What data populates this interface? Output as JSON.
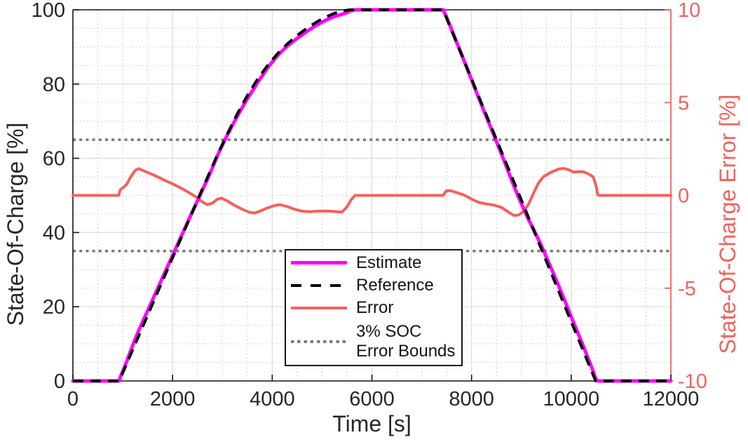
{
  "colors": {
    "axis": "#141414",
    "right_axis": "#F4615D",
    "text": "#262626",
    "grid_major": "#DBDBDB",
    "grid_minor": "#CFCFCF",
    "background": "#FFFFFF"
  },
  "chart_data": {
    "type": "line",
    "title": "",
    "xlabel": "Time [s]",
    "ylabel_left": "State-Of-Charge [%]",
    "ylabel_right": "State-Of-Charge Error [%]",
    "xlim": [
      0,
      12000
    ],
    "ylim_left": [
      0,
      100
    ],
    "ylim_right": [
      -10,
      10
    ],
    "xticks": [
      0,
      2000,
      4000,
      6000,
      8000,
      10000,
      12000
    ],
    "yticks_left": [
      0,
      20,
      40,
      60,
      80,
      100
    ],
    "yticks_right": [
      -10,
      -5,
      0,
      5,
      10
    ],
    "x_minor_step": 500,
    "x_major_step": 2000,
    "y_minor_step_left": 5,
    "y_major_step_left": 20,
    "grid": "major solid, minor dotted",
    "legend": {
      "position": "south-center",
      "items": [
        {
          "label": "Estimate"
        },
        {
          "label": "Reference"
        },
        {
          "label": "Error"
        },
        {
          "label_line1": "3% SOC",
          "label_line2": "Error Bounds"
        }
      ]
    },
    "series": [
      {
        "name": "Estimate",
        "axis": "left",
        "color": "#FF00FF",
        "style": "solid",
        "derived": "reference_plus_error"
      },
      {
        "name": "Reference",
        "axis": "left",
        "color": "#000000",
        "style": "dashed",
        "points": [
          [
            0,
            0
          ],
          [
            930,
            0
          ],
          [
            1400,
            14.6
          ],
          [
            1800,
            27
          ],
          [
            2200,
            39.4
          ],
          [
            2600,
            51.8
          ],
          [
            2900,
            60.9
          ],
          [
            3100,
            66.6
          ],
          [
            3300,
            72
          ],
          [
            3500,
            76.9
          ],
          [
            3700,
            81.2
          ],
          [
            3900,
            84.9
          ],
          [
            4100,
            88.1
          ],
          [
            4300,
            90.8
          ],
          [
            4500,
            93.1
          ],
          [
            4700,
            95.1
          ],
          [
            4900,
            96.8
          ],
          [
            5100,
            98.2
          ],
          [
            5250,
            99.1
          ],
          [
            5400,
            99.7
          ],
          [
            5560,
            100
          ],
          [
            7430,
            100
          ],
          [
            7800,
            87.9
          ],
          [
            8200,
            74.8
          ],
          [
            8600,
            61.8
          ],
          [
            9000,
            48.7
          ],
          [
            9400,
            35.6
          ],
          [
            9800,
            22.5
          ],
          [
            10200,
            9.5
          ],
          [
            10490,
            0
          ],
          [
            12000,
            0
          ]
        ]
      },
      {
        "name": "Error",
        "axis": "right",
        "color": "#F4615D",
        "style": "solid",
        "points": [
          [
            0,
            0
          ],
          [
            920,
            0
          ],
          [
            950,
            0.3
          ],
          [
            1020,
            0.45
          ],
          [
            1080,
            0.6
          ],
          [
            1150,
            0.95
          ],
          [
            1250,
            1.35
          ],
          [
            1320,
            1.44
          ],
          [
            1400,
            1.35
          ],
          [
            1550,
            1.18
          ],
          [
            1700,
            1.0
          ],
          [
            1850,
            0.8
          ],
          [
            2000,
            0.62
          ],
          [
            2150,
            0.42
          ],
          [
            2300,
            0.2
          ],
          [
            2450,
            -0.05
          ],
          [
            2600,
            -0.35
          ],
          [
            2700,
            -0.5
          ],
          [
            2800,
            -0.42
          ],
          [
            2900,
            -0.2
          ],
          [
            2980,
            -0.15
          ],
          [
            3100,
            -0.3
          ],
          [
            3250,
            -0.55
          ],
          [
            3400,
            -0.75
          ],
          [
            3550,
            -0.92
          ],
          [
            3650,
            -0.95
          ],
          [
            3750,
            -0.85
          ],
          [
            3900,
            -0.68
          ],
          [
            4050,
            -0.55
          ],
          [
            4150,
            -0.5
          ],
          [
            4300,
            -0.6
          ],
          [
            4450,
            -0.75
          ],
          [
            4600,
            -0.85
          ],
          [
            4750,
            -0.88
          ],
          [
            4900,
            -0.85
          ],
          [
            5100,
            -0.84
          ],
          [
            5250,
            -0.87
          ],
          [
            5400,
            -0.9
          ],
          [
            5500,
            -0.62
          ],
          [
            5580,
            -0.25
          ],
          [
            5660,
            0
          ],
          [
            7430,
            0
          ],
          [
            7490,
            0.24
          ],
          [
            7580,
            0.26
          ],
          [
            7700,
            0.15
          ],
          [
            7850,
            0.02
          ],
          [
            8000,
            -0.2
          ],
          [
            8150,
            -0.38
          ],
          [
            8300,
            -0.46
          ],
          [
            8450,
            -0.52
          ],
          [
            8600,
            -0.65
          ],
          [
            8750,
            -0.92
          ],
          [
            8850,
            -1.08
          ],
          [
            8950,
            -1.05
          ],
          [
            9050,
            -0.85
          ],
          [
            9150,
            -0.45
          ],
          [
            9250,
            0.15
          ],
          [
            9350,
            0.7
          ],
          [
            9450,
            1.02
          ],
          [
            9600,
            1.25
          ],
          [
            9750,
            1.42
          ],
          [
            9850,
            1.45
          ],
          [
            9950,
            1.38
          ],
          [
            10050,
            1.25
          ],
          [
            10150,
            1.28
          ],
          [
            10250,
            1.27
          ],
          [
            10350,
            1.15
          ],
          [
            10440,
            1.0
          ],
          [
            10500,
            0.5
          ],
          [
            10530,
            0.05
          ],
          [
            10560,
            0
          ],
          [
            12000,
            0
          ]
        ]
      },
      {
        "name": "3% SOC Error Bounds",
        "axis": "right",
        "color": "#7B7B7B",
        "style": "dotted",
        "bounds": [
          3,
          -3
        ]
      }
    ]
  }
}
